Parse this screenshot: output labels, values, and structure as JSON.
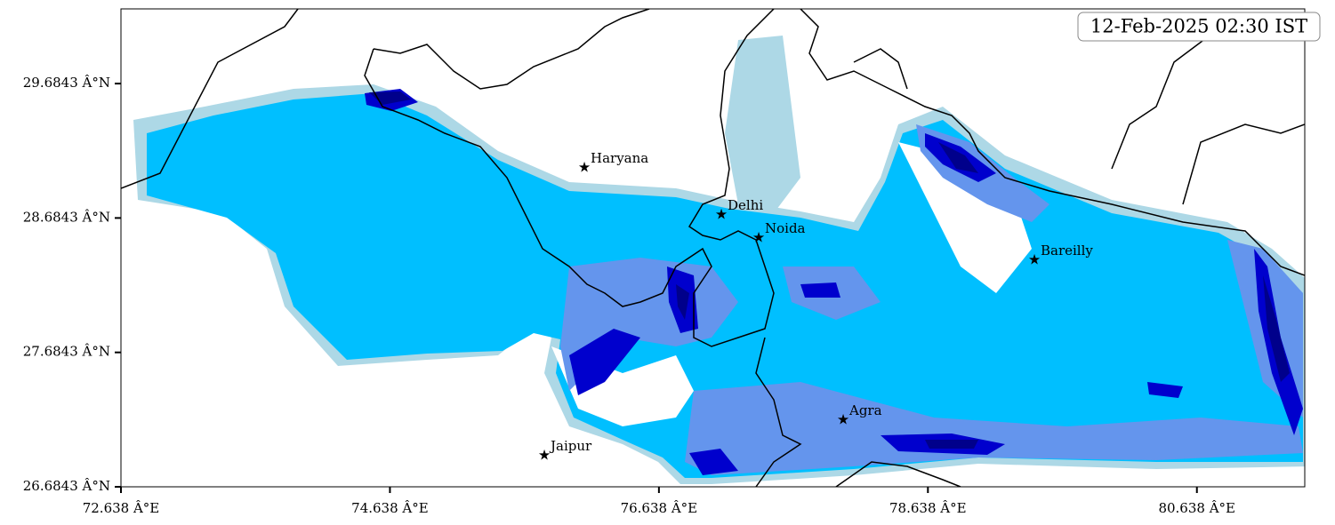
{
  "map": {
    "timestamp": "12-Feb-2025 02:30 IST",
    "xlim": [
      72.638,
      81.44
    ],
    "ylim": [
      26.6843,
      30.24
    ],
    "xticks": [
      {
        "value": 72.638,
        "label": "72.638 Â°E"
      },
      {
        "value": 74.638,
        "label": "74.638 Â°E"
      },
      {
        "value": 76.638,
        "label": "76.638 Â°E"
      },
      {
        "value": 78.638,
        "label": "78.638 Â°E"
      },
      {
        "value": 80.638,
        "label": "80.638 Â°E"
      }
    ],
    "yticks": [
      {
        "value": 26.6843,
        "label": "26.6843 Â°N"
      },
      {
        "value": 27.6843,
        "label": "27.6843 Â°N"
      },
      {
        "value": 28.6843,
        "label": "28.6843 Â°N"
      },
      {
        "value": 29.6843,
        "label": "29.6843 Â°N"
      }
    ],
    "cities": [
      "Haryana",
      "Delhi",
      "Noida",
      "Bareilly",
      "Agra",
      "Jaipur"
    ]
  }
}
